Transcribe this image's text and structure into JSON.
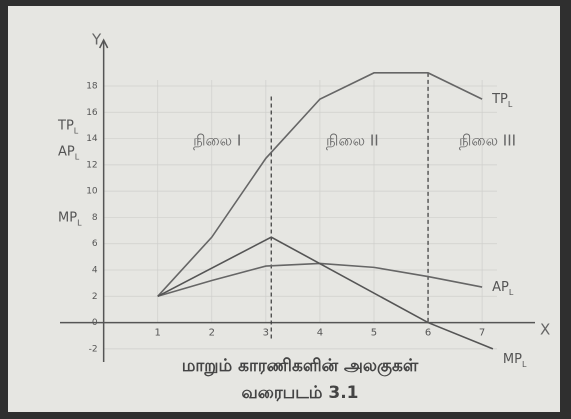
{
  "chart_data": {
    "type": "line",
    "y_axis_letter": "Y",
    "x_axis_letter": "X",
    "y_axis_labels": [
      {
        "main": "TP",
        "sub": "L"
      },
      {
        "main": "AP",
        "sub": "L"
      },
      {
        "main": "MP",
        "sub": "L"
      }
    ],
    "xlim": [
      -0.9,
      8.2
    ],
    "ylim": [
      -3,
      21.5
    ],
    "xticks": [
      1,
      2,
      3,
      4,
      5,
      6,
      7
    ],
    "yticks": [
      -2,
      0,
      2,
      4,
      6,
      8,
      10,
      12,
      14,
      16,
      18
    ],
    "grid": true,
    "series": [
      {
        "name": "TP",
        "sub": "L",
        "color": "#666",
        "x": [
          1,
          2,
          3,
          4,
          5,
          6,
          7
        ],
        "values": [
          2,
          6.5,
          12.5,
          17,
          19,
          19,
          17
        ]
      },
      {
        "name": "AP",
        "sub": "L",
        "color": "#666",
        "x": [
          1,
          2,
          3,
          4,
          5,
          6,
          7
        ],
        "values": [
          2,
          3.2,
          4.3,
          4.5,
          4.2,
          3.5,
          2.7
        ]
      },
      {
        "name": "MP",
        "sub": "L",
        "color": "#555",
        "x": [
          1,
          3.1,
          6,
          7.2
        ],
        "values": [
          2,
          6.5,
          0,
          -2
        ]
      }
    ],
    "dividers": [
      3.1,
      6
    ],
    "stages": [
      "நிலை I",
      "நிலை II",
      "நிலை III"
    ],
    "caption": [
      "மாறும் காரணிகளின் அலகுகள்",
      "வரைபடம் 3.1"
    ]
  }
}
